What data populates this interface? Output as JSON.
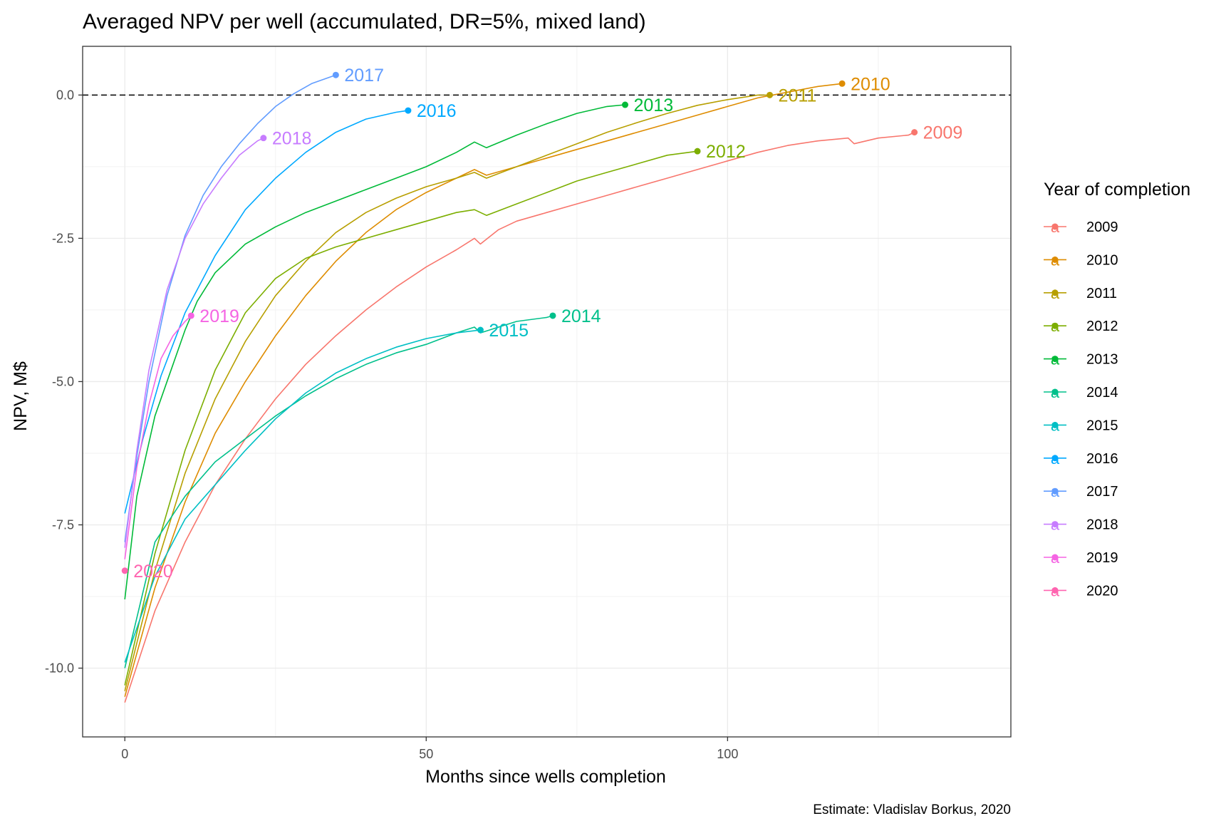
{
  "chart_data": {
    "type": "line",
    "title": "Averaged NPV per well (accumulated, DR=5%, mixed land)",
    "xlabel": "Months since wells completion",
    "ylabel": "NPV, M$",
    "caption": "Estimate: Vladislav Borkus, 2020",
    "xlim": [
      -7,
      147
    ],
    "ylim": [
      -11.2,
      0.85
    ],
    "x_ticks": [
      0,
      50,
      100
    ],
    "x_tick_labels": [
      "0",
      "50",
      "100"
    ],
    "y_ticks": [
      0.0,
      -2.5,
      -5.0,
      -7.5,
      -10.0
    ],
    "y_tick_labels": [
      "0.0",
      "-2.5",
      "-5.0",
      "-7.5",
      "-10.0"
    ],
    "reference_line": {
      "y": 0,
      "style": "dashed"
    },
    "grid": true,
    "legend": {
      "title": "Year of completion",
      "position": "right"
    },
    "series": [
      {
        "name": "2009",
        "label": "2009",
        "color": "#F8766D",
        "x": [
          0,
          5,
          10,
          15,
          20,
          25,
          30,
          35,
          40,
          45,
          50,
          55,
          58,
          59,
          62,
          65,
          70,
          75,
          80,
          85,
          90,
          95,
          100,
          105,
          110,
          115,
          120,
          121,
          125,
          130,
          131
        ],
        "y": [
          -10.6,
          -9.0,
          -7.8,
          -6.8,
          -6.0,
          -5.3,
          -4.7,
          -4.2,
          -3.75,
          -3.35,
          -3.0,
          -2.7,
          -2.5,
          -2.6,
          -2.35,
          -2.2,
          -2.05,
          -1.9,
          -1.75,
          -1.6,
          -1.45,
          -1.3,
          -1.15,
          -1.0,
          -0.88,
          -0.8,
          -0.75,
          -0.85,
          -0.75,
          -0.7,
          -0.65
        ]
      },
      {
        "name": "2010",
        "label": "2010",
        "color": "#DE8C00",
        "x": [
          0,
          5,
          10,
          15,
          20,
          25,
          30,
          35,
          40,
          45,
          50,
          55,
          58,
          60,
          65,
          70,
          75,
          80,
          85,
          90,
          95,
          100,
          105,
          110,
          115,
          119
        ],
        "y": [
          -10.5,
          -8.6,
          -7.1,
          -5.9,
          -5.0,
          -4.2,
          -3.5,
          -2.9,
          -2.4,
          -2.0,
          -1.7,
          -1.45,
          -1.3,
          -1.4,
          -1.25,
          -1.1,
          -0.95,
          -0.8,
          -0.65,
          -0.5,
          -0.35,
          -0.2,
          -0.05,
          0.05,
          0.15,
          0.2
        ]
      },
      {
        "name": "2011",
        "label": "2011",
        "color": "#B79F00",
        "x": [
          0,
          5,
          10,
          15,
          20,
          25,
          30,
          35,
          40,
          45,
          50,
          55,
          58,
          60,
          65,
          70,
          75,
          80,
          85,
          90,
          95,
          100,
          105,
          107
        ],
        "y": [
          -10.4,
          -8.3,
          -6.6,
          -5.3,
          -4.3,
          -3.5,
          -2.9,
          -2.4,
          -2.05,
          -1.8,
          -1.6,
          -1.45,
          -1.35,
          -1.45,
          -1.25,
          -1.05,
          -0.85,
          -0.65,
          -0.48,
          -0.32,
          -0.18,
          -0.08,
          0.0,
          0.0
        ]
      },
      {
        "name": "2012",
        "label": "2012",
        "color": "#7CAE00",
        "x": [
          0,
          5,
          10,
          15,
          20,
          25,
          30,
          35,
          40,
          45,
          50,
          55,
          58,
          60,
          65,
          70,
          75,
          80,
          85,
          90,
          95
        ],
        "y": [
          -10.3,
          -8.0,
          -6.2,
          -4.8,
          -3.8,
          -3.2,
          -2.85,
          -2.65,
          -2.5,
          -2.35,
          -2.2,
          -2.05,
          -2.0,
          -2.1,
          -1.9,
          -1.7,
          -1.5,
          -1.35,
          -1.2,
          -1.05,
          -0.98
        ]
      },
      {
        "name": "2013",
        "label": "2013",
        "color": "#00BA38",
        "x": [
          0,
          2,
          5,
          8,
          10,
          12,
          15,
          20,
          25,
          30,
          35,
          40,
          45,
          50,
          55,
          58,
          60,
          65,
          70,
          75,
          80,
          83
        ],
        "y": [
          -8.8,
          -7.0,
          -5.6,
          -4.7,
          -4.1,
          -3.6,
          -3.1,
          -2.6,
          -2.3,
          -2.05,
          -1.85,
          -1.65,
          -1.45,
          -1.25,
          -1.0,
          -0.82,
          -0.92,
          -0.7,
          -0.5,
          -0.32,
          -0.2,
          -0.17
        ]
      },
      {
        "name": "2014",
        "label": "2014",
        "color": "#00C08B",
        "x": [
          0,
          5,
          10,
          15,
          20,
          25,
          30,
          35,
          40,
          45,
          50,
          55,
          58,
          59,
          62,
          65,
          70,
          71
        ],
        "y": [
          -10.0,
          -7.8,
          -7.0,
          -6.4,
          -6.0,
          -5.6,
          -5.25,
          -4.95,
          -4.7,
          -4.5,
          -4.35,
          -4.15,
          -4.05,
          -4.15,
          -4.05,
          -3.95,
          -3.88,
          -3.85
        ]
      },
      {
        "name": "2015",
        "label": "2015",
        "color": "#00BFC4",
        "x": [
          0,
          5,
          10,
          15,
          20,
          25,
          30,
          35,
          40,
          45,
          50,
          55,
          59
        ],
        "y": [
          -9.9,
          -8.4,
          -7.4,
          -6.8,
          -6.2,
          -5.65,
          -5.2,
          -4.85,
          -4.6,
          -4.4,
          -4.25,
          -4.15,
          -4.1
        ]
      },
      {
        "name": "2016",
        "label": "2016",
        "color": "#00A9FF",
        "x": [
          0,
          3,
          6,
          10,
          15,
          20,
          25,
          30,
          35,
          40,
          45,
          47
        ],
        "y": [
          -7.3,
          -6.0,
          -4.9,
          -3.8,
          -2.8,
          -2.0,
          -1.45,
          -1.0,
          -0.65,
          -0.42,
          -0.3,
          -0.27
        ]
      },
      {
        "name": "2017",
        "label": "2017",
        "color": "#619CFF",
        "x": [
          0,
          2,
          4,
          7,
          10,
          13,
          16,
          19,
          22,
          25,
          28,
          31,
          35
        ],
        "y": [
          -7.8,
          -6.3,
          -5.0,
          -3.5,
          -2.45,
          -1.75,
          -1.25,
          -0.85,
          -0.5,
          -0.2,
          0.02,
          0.2,
          0.35
        ]
      },
      {
        "name": "2018",
        "label": "2018",
        "color": "#C77CFF",
        "x": [
          0,
          2,
          4,
          7,
          10,
          13,
          16,
          19,
          22,
          23
        ],
        "y": [
          -7.9,
          -6.2,
          -4.8,
          -3.4,
          -2.5,
          -1.9,
          -1.45,
          -1.05,
          -0.8,
          -0.75
        ]
      },
      {
        "name": "2019",
        "label": "2019",
        "color": "#F564E3",
        "x": [
          0,
          2,
          4,
          6,
          8,
          10,
          11
        ],
        "y": [
          -8.1,
          -6.5,
          -5.4,
          -4.6,
          -4.2,
          -3.95,
          -3.85
        ]
      },
      {
        "name": "2020",
        "label": "2020",
        "color": "#FF64B0",
        "x": [
          0
        ],
        "y": [
          -8.3
        ]
      }
    ]
  }
}
